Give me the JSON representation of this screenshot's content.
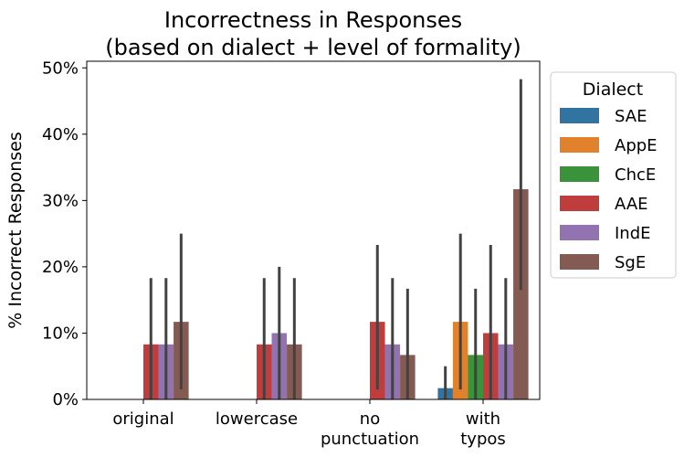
{
  "chart_data": {
    "type": "bar",
    "title_lines": [
      "Incorrectness in Responses",
      "(based on dialect + level of formality)"
    ],
    "xlabel": "",
    "ylabel": "% Incorrect Responses",
    "ylim": [
      0,
      51
    ],
    "yticks": [
      0,
      10,
      20,
      30,
      40,
      50
    ],
    "ytick_labels": [
      "0%",
      "10%",
      "20%",
      "30%",
      "40%",
      "50%"
    ],
    "categories": [
      [
        "original"
      ],
      [
        "lowercase"
      ],
      [
        "no",
        "punctuation"
      ],
      [
        "with",
        "typos"
      ]
    ],
    "legend": {
      "title": "Dialect",
      "placement": "outside-right"
    },
    "grid": false,
    "series": [
      {
        "name": "SAE",
        "color": "#3274a1",
        "values": [
          0,
          0,
          0,
          1.7
        ],
        "ci": [
          null,
          null,
          null,
          [
            0,
            5
          ]
        ]
      },
      {
        "name": "AppE",
        "color": "#e1812c",
        "values": [
          0,
          0,
          0,
          11.7
        ],
        "ci": [
          null,
          null,
          null,
          [
            1.5,
            25
          ]
        ]
      },
      {
        "name": "ChcE",
        "color": "#3a923a",
        "values": [
          0,
          0,
          0,
          6.7
        ],
        "ci": [
          null,
          null,
          null,
          [
            0,
            16.7
          ]
        ]
      },
      {
        "name": "AAE",
        "color": "#c03d3e",
        "values": [
          8.3,
          8.3,
          11.7,
          10
        ],
        "ci": [
          [
            0,
            18.3
          ],
          [
            0,
            18.3
          ],
          [
            1.5,
            23.3
          ],
          [
            0,
            23.3
          ]
        ]
      },
      {
        "name": "IndE",
        "color": "#9372b2",
        "values": [
          8.3,
          10,
          8.3,
          8.3
        ],
        "ci": [
          [
            0,
            18.3
          ],
          [
            0,
            20
          ],
          [
            0,
            18.3
          ],
          [
            0,
            18.3
          ]
        ]
      },
      {
        "name": "SgE",
        "color": "#845b53",
        "values": [
          11.7,
          8.3,
          6.7,
          31.7
        ],
        "ci": [
          [
            1.5,
            25
          ],
          [
            0,
            18.3
          ],
          [
            0,
            16.7
          ],
          [
            16.5,
            48.3
          ]
        ]
      }
    ]
  }
}
